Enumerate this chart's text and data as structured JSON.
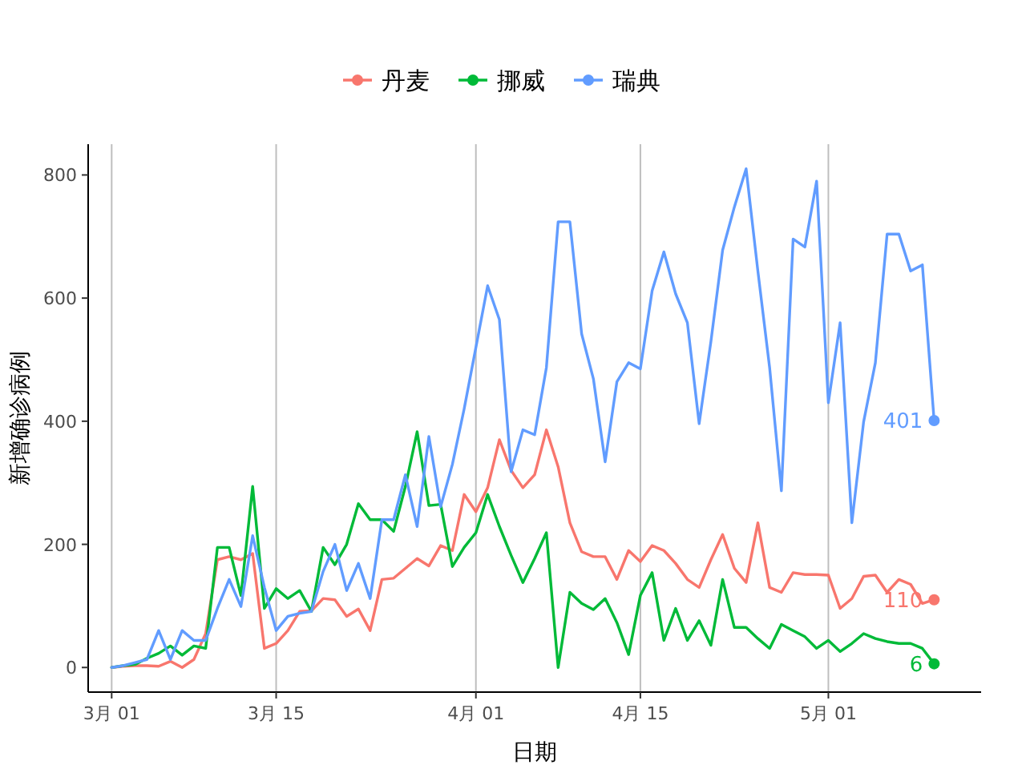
{
  "chart_data": {
    "type": "line",
    "xlabel": "日期",
    "ylabel": "新增确诊病例",
    "x": [
      "--03-01",
      "--03-02",
      "--03-03",
      "--03-04",
      "--03-05",
      "--03-06",
      "--03-07",
      "--03-08",
      "--03-09",
      "--03-10",
      "--03-11",
      "--03-12",
      "--03-13",
      "--03-14",
      "--03-15",
      "--03-16",
      "--03-17",
      "--03-18",
      "--03-19",
      "--03-20",
      "--03-21",
      "--03-22",
      "--03-23",
      "--03-24",
      "--03-25",
      "--03-26",
      "--03-27",
      "--03-28",
      "--03-29",
      "--03-30",
      "--03-31",
      "--04-01",
      "--04-02",
      "--04-03",
      "--04-04",
      "--04-05",
      "--04-06",
      "--04-07",
      "--04-08",
      "--04-09",
      "--04-10",
      "--04-11",
      "--04-12",
      "--04-13",
      "--04-14",
      "--04-15",
      "--04-16",
      "--04-17",
      "--04-18",
      "--04-19",
      "--04-20",
      "--04-21",
      "--04-22",
      "--04-23",
      "--04-24",
      "--04-25",
      "--04-26",
      "--04-27",
      "--04-28",
      "--04-29",
      "--04-30",
      "--05-01",
      "--05-02",
      "--05-03",
      "--05-04",
      "--05-05",
      "--05-06",
      "--05-07",
      "--05-08",
      "--05-09",
      "--05-10"
    ],
    "series": [
      {
        "name": "丹麦",
        "color": "#f8766d",
        "values": [
          0,
          2,
          3,
          3,
          2,
          10,
          0,
          13,
          55,
          175,
          180,
          175,
          185,
          31,
          39,
          60,
          91,
          92,
          112,
          110,
          83,
          95,
          60,
          143,
          145,
          161,
          177,
          165,
          198,
          190,
          281,
          253,
          292,
          370,
          320,
          292,
          313,
          386,
          326,
          235,
          188,
          180,
          180,
          143,
          190,
          172,
          198,
          190,
          169,
          143,
          130,
          175,
          216,
          161,
          138,
          235,
          130,
          122,
          154,
          151,
          151,
          150,
          96,
          112,
          148,
          150,
          122,
          143,
          135,
          104,
          110
        ],
        "value_labels": [
          null,
          null,
          null,
          null,
          null,
          null,
          null,
          null,
          null,
          null,
          null,
          null,
          null,
          null,
          null,
          null,
          null,
          null,
          null,
          null,
          null,
          null,
          null,
          null,
          null,
          null,
          null,
          null,
          null,
          null,
          null,
          null,
          null,
          null,
          null,
          null,
          null,
          null,
          null,
          null,
          null,
          null,
          null,
          null,
          null,
          null,
          null,
          null,
          null,
          null,
          null,
          null,
          null,
          null,
          null,
          null,
          null,
          null,
          null,
          null,
          null,
          null,
          null,
          null,
          null,
          null,
          null,
          null,
          null,
          null,
          "110"
        ]
      },
      {
        "name": "挪威",
        "color": "#00ba38",
        "values": [
          0,
          3,
          5,
          15,
          23,
          35,
          20,
          35,
          31,
          195,
          195,
          117,
          294,
          96,
          128,
          112,
          125,
          91,
          195,
          167,
          200,
          266,
          240,
          240,
          221,
          294,
          383,
          263,
          265,
          164,
          195,
          219,
          281,
          229,
          182,
          138,
          177,
          219,
          0,
          122,
          104,
          94,
          112,
          73,
          21,
          117,
          154,
          44,
          96,
          44,
          76,
          36,
          143,
          65,
          65,
          47,
          31,
          70,
          60,
          50,
          31,
          44,
          26,
          39,
          55,
          47,
          42,
          39,
          39,
          31,
          6
        ],
        "value_labels": [
          null,
          null,
          null,
          null,
          null,
          null,
          null,
          null,
          null,
          null,
          null,
          null,
          null,
          null,
          null,
          null,
          null,
          null,
          null,
          null,
          null,
          null,
          null,
          null,
          null,
          null,
          null,
          null,
          null,
          null,
          null,
          null,
          null,
          null,
          null,
          null,
          null,
          null,
          null,
          null,
          null,
          null,
          null,
          null,
          null,
          null,
          null,
          null,
          null,
          null,
          null,
          null,
          null,
          null,
          null,
          null,
          null,
          null,
          null,
          null,
          null,
          null,
          null,
          null,
          null,
          null,
          null,
          null,
          null,
          null,
          "6"
        ]
      },
      {
        "name": "瑞典",
        "color": "#619cff",
        "values": [
          0,
          3,
          8,
          13,
          60,
          13,
          60,
          44,
          44,
          96,
          143,
          99,
          214,
          130,
          60,
          83,
          88,
          91,
          156,
          200,
          125,
          169,
          112,
          240,
          240,
          313,
          229,
          375,
          261,
          330,
          420,
          520,
          620,
          565,
          318,
          386,
          378,
          487,
          724,
          724,
          542,
          469,
          334,
          464,
          495,
          485,
          612,
          675,
          607,
          560,
          396,
          529,
          678,
          748,
          810,
          644,
          487,
          287,
          696,
          683,
          790,
          430,
          560,
          235,
          399,
          495,
          704,
          704,
          644,
          654,
          401
        ],
        "value_labels": [
          null,
          null,
          null,
          null,
          null,
          null,
          null,
          null,
          null,
          null,
          null,
          null,
          null,
          null,
          null,
          null,
          null,
          null,
          null,
          null,
          null,
          null,
          null,
          null,
          null,
          null,
          null,
          null,
          null,
          null,
          null,
          null,
          null,
          null,
          null,
          null,
          null,
          null,
          null,
          null,
          null,
          null,
          null,
          null,
          null,
          null,
          null,
          null,
          null,
          null,
          null,
          null,
          null,
          null,
          null,
          null,
          null,
          null,
          null,
          null,
          null,
          null,
          null,
          null,
          null,
          null,
          null,
          null,
          null,
          null,
          "401"
        ]
      }
    ],
    "xlim": [
      "--02-27",
      "--05-14"
    ],
    "xticks": [
      {
        "value": "--03-01",
        "label": "3月 01"
      },
      {
        "value": "--03-15",
        "label": "3月 15"
      },
      {
        "value": "--04-01",
        "label": "4月 01"
      },
      {
        "value": "--04-15",
        "label": "4月 15"
      },
      {
        "value": "--05-01",
        "label": "5月 01"
      }
    ],
    "ylim": [
      -40,
      850
    ],
    "yticks": [
      0,
      200,
      400,
      600,
      800
    ],
    "grid": "x",
    "legend": "top",
    "line_style": "solid"
  }
}
